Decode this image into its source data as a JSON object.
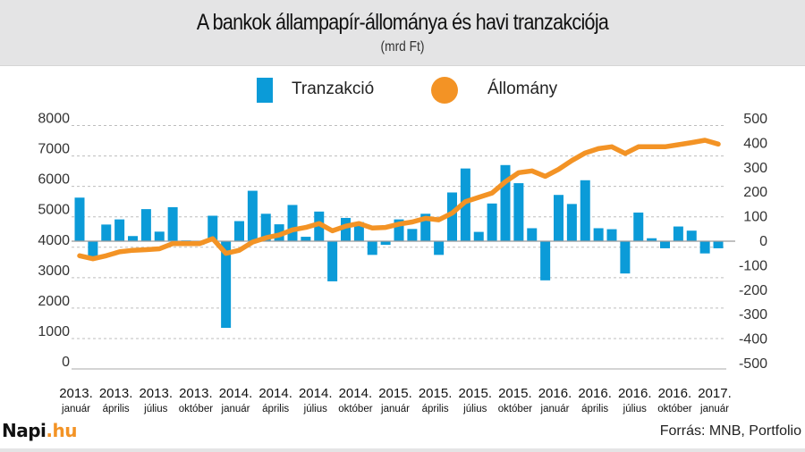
{
  "header": {
    "title": "A bankok állampapír-állománya és havi tranzakciója",
    "subtitle": "(mrd Ft)"
  },
  "legend": {
    "items": [
      {
        "label": "Tranzakció",
        "color": "#0b9bd8",
        "shape": "square"
      },
      {
        "label": "Állomány",
        "color": "#f39325",
        "shape": "circle"
      }
    ]
  },
  "footer": {
    "logo_main": "Napi",
    "logo_suffix": ".hu",
    "source": "Forrás: MNB, Portfolio"
  },
  "chart_data": {
    "type": "bar+line",
    "title": "A bankok állampapír-állománya és havi tranzakciója",
    "subtitle": "(mrd Ft)",
    "legend_position": "top-center",
    "grid": true,
    "x_range": [
      "2013-01",
      "2017-01"
    ],
    "x_tick_labels": [
      {
        "year": "2013.",
        "month": "január",
        "index": 0
      },
      {
        "year": "2013.",
        "month": "április",
        "index": 3
      },
      {
        "year": "2013.",
        "month": "július",
        "index": 6
      },
      {
        "year": "2013.",
        "month": "október",
        "index": 9
      },
      {
        "year": "2014.",
        "month": "január",
        "index": 12
      },
      {
        "year": "2014.",
        "month": "április",
        "index": 15
      },
      {
        "year": "2014.",
        "month": "július",
        "index": 18
      },
      {
        "year": "2014.",
        "month": "október",
        "index": 21
      },
      {
        "year": "2015.",
        "month": "január",
        "index": 24
      },
      {
        "year": "2015.",
        "month": "április",
        "index": 27
      },
      {
        "year": "2015.",
        "month": "július",
        "index": 30
      },
      {
        "year": "2015.",
        "month": "október",
        "index": 33
      },
      {
        "year": "2016.",
        "month": "január",
        "index": 36
      },
      {
        "year": "2016.",
        "month": "április",
        "index": 39
      },
      {
        "year": "2016.",
        "month": "július",
        "index": 42
      },
      {
        "year": "2016.",
        "month": "október",
        "index": 45
      },
      {
        "year": "2017.",
        "month": "január",
        "index": 48
      }
    ],
    "left_axis": {
      "label": "Állomány",
      "ylim": [
        0,
        8000
      ],
      "ticks": [
        "8000",
        "7000",
        "6000",
        "5000",
        "4000",
        "3000",
        "2000",
        "1000",
        "0"
      ]
    },
    "right_axis": {
      "label": "Tranzakció",
      "ylim": [
        -500,
        500
      ],
      "ticks": [
        "500",
        "400",
        "300",
        "200",
        "100",
        "0",
        "-100",
        "-200",
        "-300",
        "-400",
        "-500"
      ]
    },
    "series": [
      {
        "name": "Tranzakció",
        "type": "bar",
        "axis": "right",
        "color": "#0b9bd8",
        "values": [
          178,
          -69,
          68,
          89,
          21,
          131,
          39,
          139,
          3,
          -15,
          104,
          -354,
          82,
          206,
          112,
          69,
          148,
          18,
          121,
          -164,
          95,
          78,
          -56,
          -15,
          89,
          50,
          112,
          -56,
          199,
          297,
          38,
          154,
          311,
          237,
          53,
          -160,
          189,
          152,
          249,
          53,
          49,
          -132,
          117,
          12,
          -29,
          60,
          43,
          -50,
          -29
        ]
      },
      {
        "name": "Állomány",
        "type": "line",
        "axis": "left",
        "color": "#f39325",
        "values": [
          3720,
          3620,
          3720,
          3850,
          3900,
          3920,
          3950,
          4120,
          4115,
          4115,
          4280,
          3800,
          3900,
          4170,
          4310,
          4400,
          4570,
          4650,
          4780,
          4540,
          4690,
          4780,
          4630,
          4650,
          4760,
          4830,
          4950,
          4900,
          5120,
          5500,
          5640,
          5780,
          6150,
          6450,
          6510,
          6330,
          6560,
          6850,
          7100,
          7240,
          7300,
          7080,
          7300,
          7300,
          7300,
          7370,
          7440,
          7516,
          7390
        ]
      }
    ]
  }
}
